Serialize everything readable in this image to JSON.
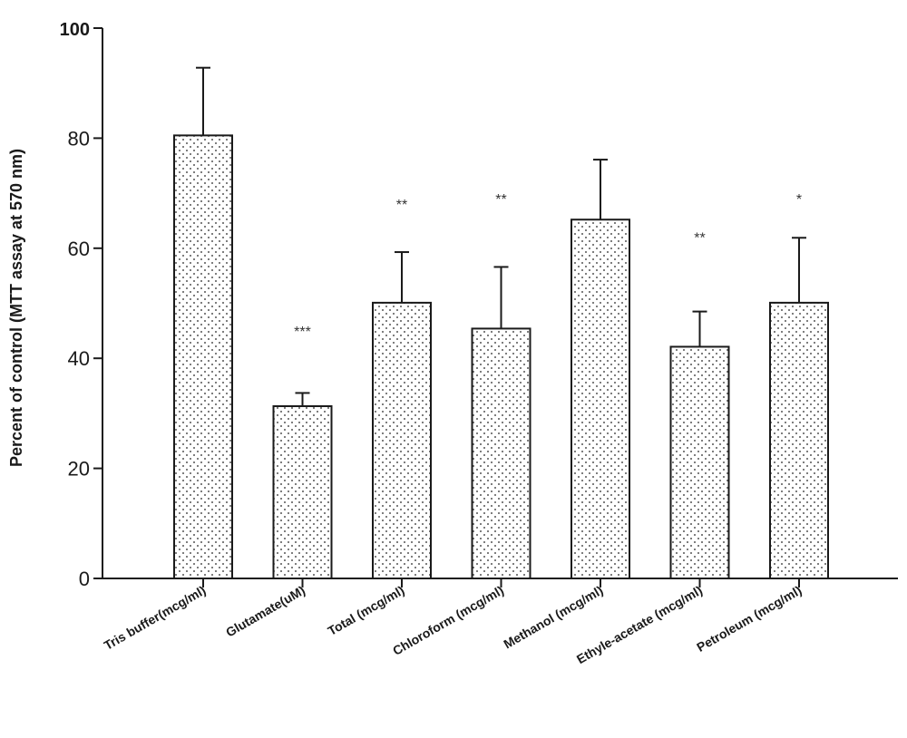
{
  "chart_data": {
    "type": "bar",
    "title": "",
    "xlabel": "",
    "ylabel": "Percent of control (MTT assay at 570 nm)",
    "ylim": [
      0,
      100
    ],
    "yticks": [
      0,
      20,
      40,
      60,
      80,
      100
    ],
    "grid": false,
    "categories": [
      "Tris buffer(mcg/ml)",
      "Glutamate(uM)",
      "Total (mcg/ml)",
      "Chloroform (mcg/ml)",
      "Methanol (mcg/ml)",
      "Ethyle-acetate (mcg/ml)",
      "Petroleum (mcg/ml)"
    ],
    "values": [
      80.5,
      31.3,
      50.1,
      45.4,
      65.2,
      42.1,
      50.1
    ],
    "errors": [
      12.3,
      2.4,
      9.2,
      11.2,
      10.9,
      6.4,
      11.8
    ],
    "significance": [
      "",
      "***",
      "**",
      "**",
      "",
      "**",
      "*"
    ],
    "significance_y": [
      null,
      45,
      68,
      69,
      null,
      62,
      69
    ]
  }
}
